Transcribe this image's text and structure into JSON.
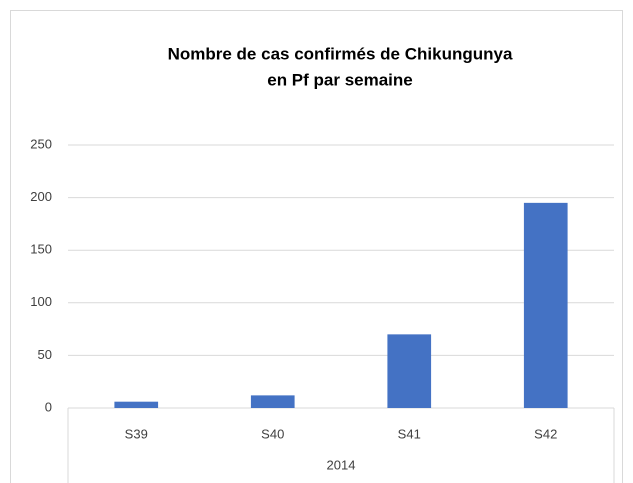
{
  "chart_data": {
    "type": "bar",
    "title": [
      "Nombre de cas confirmés de Chikungunya",
      "en Pf par semaine"
    ],
    "categories": [
      "S39",
      "S40",
      "S41",
      "S42"
    ],
    "group_label": "2014",
    "values": [
      6,
      12,
      70,
      195
    ],
    "color": "#4472c4",
    "ylim": [
      0,
      250
    ],
    "yticks": [
      0,
      50,
      100,
      150,
      200,
      250
    ],
    "grid": true
  }
}
